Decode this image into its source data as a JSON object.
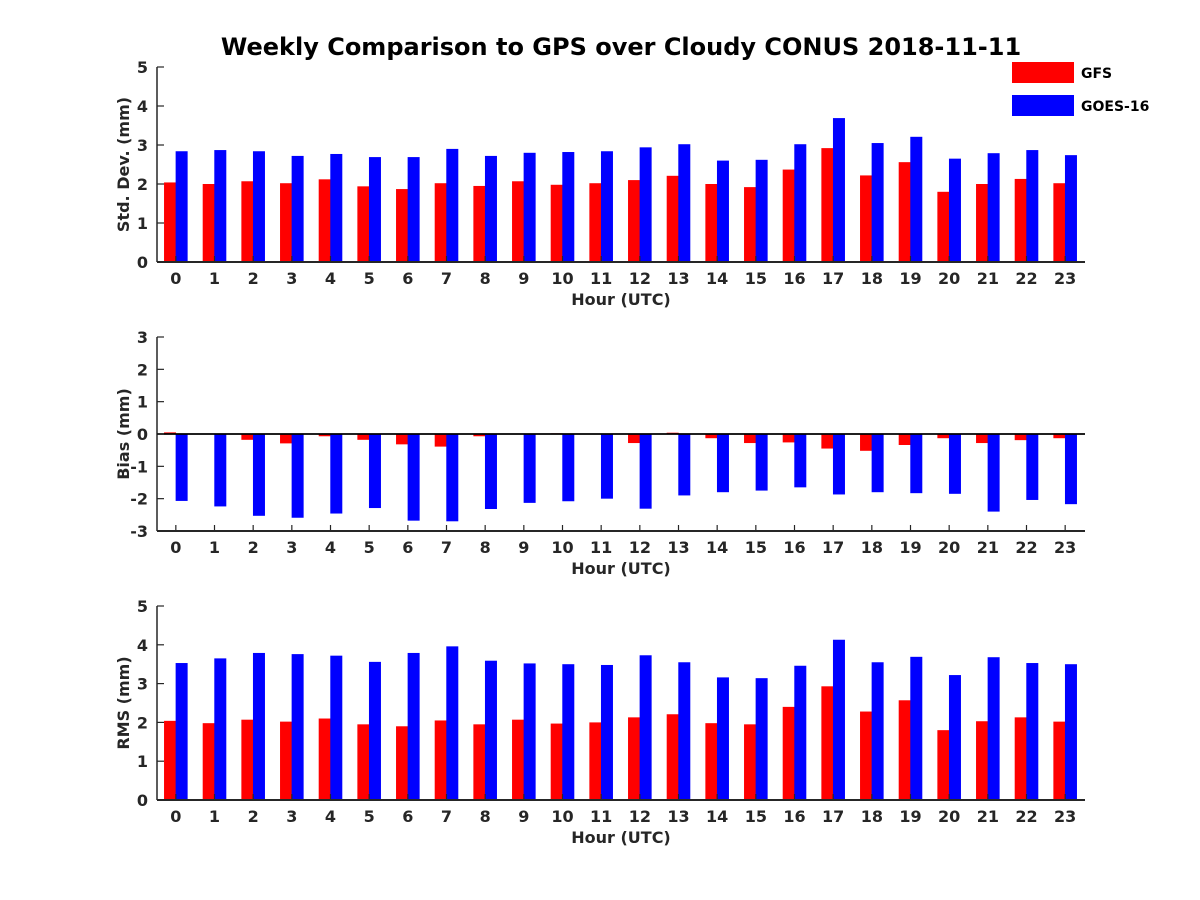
{
  "chart_data": {
    "type": "bar",
    "title": "Weekly Comparison to GPS over Cloudy CONUS 2018-11-11",
    "legend": {
      "placement": "top-right",
      "entries": [
        "GFS",
        "GOES-16"
      ]
    },
    "series_colors": {
      "GFS": "#ff0000",
      "GOES-16": "#0000ff"
    },
    "categories": [
      "0",
      "1",
      "2",
      "3",
      "4",
      "5",
      "6",
      "7",
      "8",
      "9",
      "10",
      "11",
      "12",
      "13",
      "14",
      "15",
      "16",
      "17",
      "18",
      "19",
      "20",
      "21",
      "22",
      "23"
    ],
    "grid": false,
    "panels": [
      {
        "ylabel": "Std. Dev. (mm)",
        "xlabel": "Hour (UTC)",
        "ylim": [
          0,
          5
        ],
        "yticks": [
          "0",
          "1",
          "2",
          "3",
          "4",
          "5"
        ],
        "series": [
          {
            "name": "GFS",
            "values": [
              2.04,
              2.0,
              2.07,
              2.02,
              2.12,
              1.94,
              1.87,
              2.02,
              1.95,
              2.07,
              1.98,
              2.02,
              2.1,
              2.21,
              2.0,
              1.92,
              2.37,
              2.92,
              2.22,
              2.56,
              1.8,
              2.0,
              2.13,
              2.02
            ]
          },
          {
            "name": "GOES-16",
            "values": [
              2.84,
              2.87,
              2.84,
              2.72,
              2.77,
              2.69,
              2.69,
              2.9,
              2.72,
              2.8,
              2.82,
              2.84,
              2.94,
              3.02,
              2.6,
              2.62,
              3.02,
              3.69,
              3.05,
              3.21,
              2.65,
              2.79,
              2.87,
              2.74
            ]
          }
        ]
      },
      {
        "ylabel": "Bias (mm)",
        "xlabel": "Hour (UTC)",
        "ylim": [
          -3,
          3
        ],
        "yticks": [
          "-3",
          "-2",
          "-1",
          "0",
          "1",
          "2",
          "3"
        ],
        "series": [
          {
            "name": "GFS",
            "values": [
              0.05,
              0.0,
              -0.18,
              -0.29,
              -0.07,
              -0.18,
              -0.32,
              -0.39,
              -0.07,
              0.0,
              0.02,
              0.0,
              -0.28,
              0.04,
              -0.13,
              -0.28,
              -0.26,
              -0.45,
              -0.52,
              -0.34,
              -0.13,
              -0.28,
              -0.19,
              -0.13
            ]
          },
          {
            "name": "GOES-16",
            "values": [
              -2.07,
              -2.24,
              -2.53,
              -2.59,
              -2.46,
              -2.29,
              -2.68,
              -2.7,
              -2.32,
              -2.13,
              -2.08,
              -2.0,
              -2.31,
              -1.9,
              -1.8,
              -1.75,
              -1.65,
              -1.87,
              -1.8,
              -1.83,
              -1.85,
              -2.4,
              -2.04,
              -2.17
            ]
          }
        ]
      },
      {
        "ylabel": "RMS (mm)",
        "xlabel": "Hour (UTC)",
        "ylim": [
          0,
          5
        ],
        "yticks": [
          "0",
          "1",
          "2",
          "3",
          "4",
          "5"
        ],
        "series": [
          {
            "name": "GFS",
            "values": [
              2.04,
              1.98,
              2.07,
              2.02,
              2.1,
              1.95,
              1.9,
              2.05,
              1.95,
              2.07,
              1.97,
              2.0,
              2.13,
              2.21,
              1.98,
              1.95,
              2.4,
              2.93,
              2.28,
              2.57,
              1.8,
              2.03,
              2.13,
              2.02
            ]
          },
          {
            "name": "GOES-16",
            "values": [
              3.53,
              3.65,
              3.79,
              3.76,
              3.72,
              3.56,
              3.79,
              3.96,
              3.59,
              3.52,
              3.5,
              3.48,
              3.73,
              3.55,
              3.16,
              3.14,
              3.46,
              4.13,
              3.55,
              3.69,
              3.22,
              3.68,
              3.53,
              3.5
            ]
          }
        ]
      }
    ]
  }
}
